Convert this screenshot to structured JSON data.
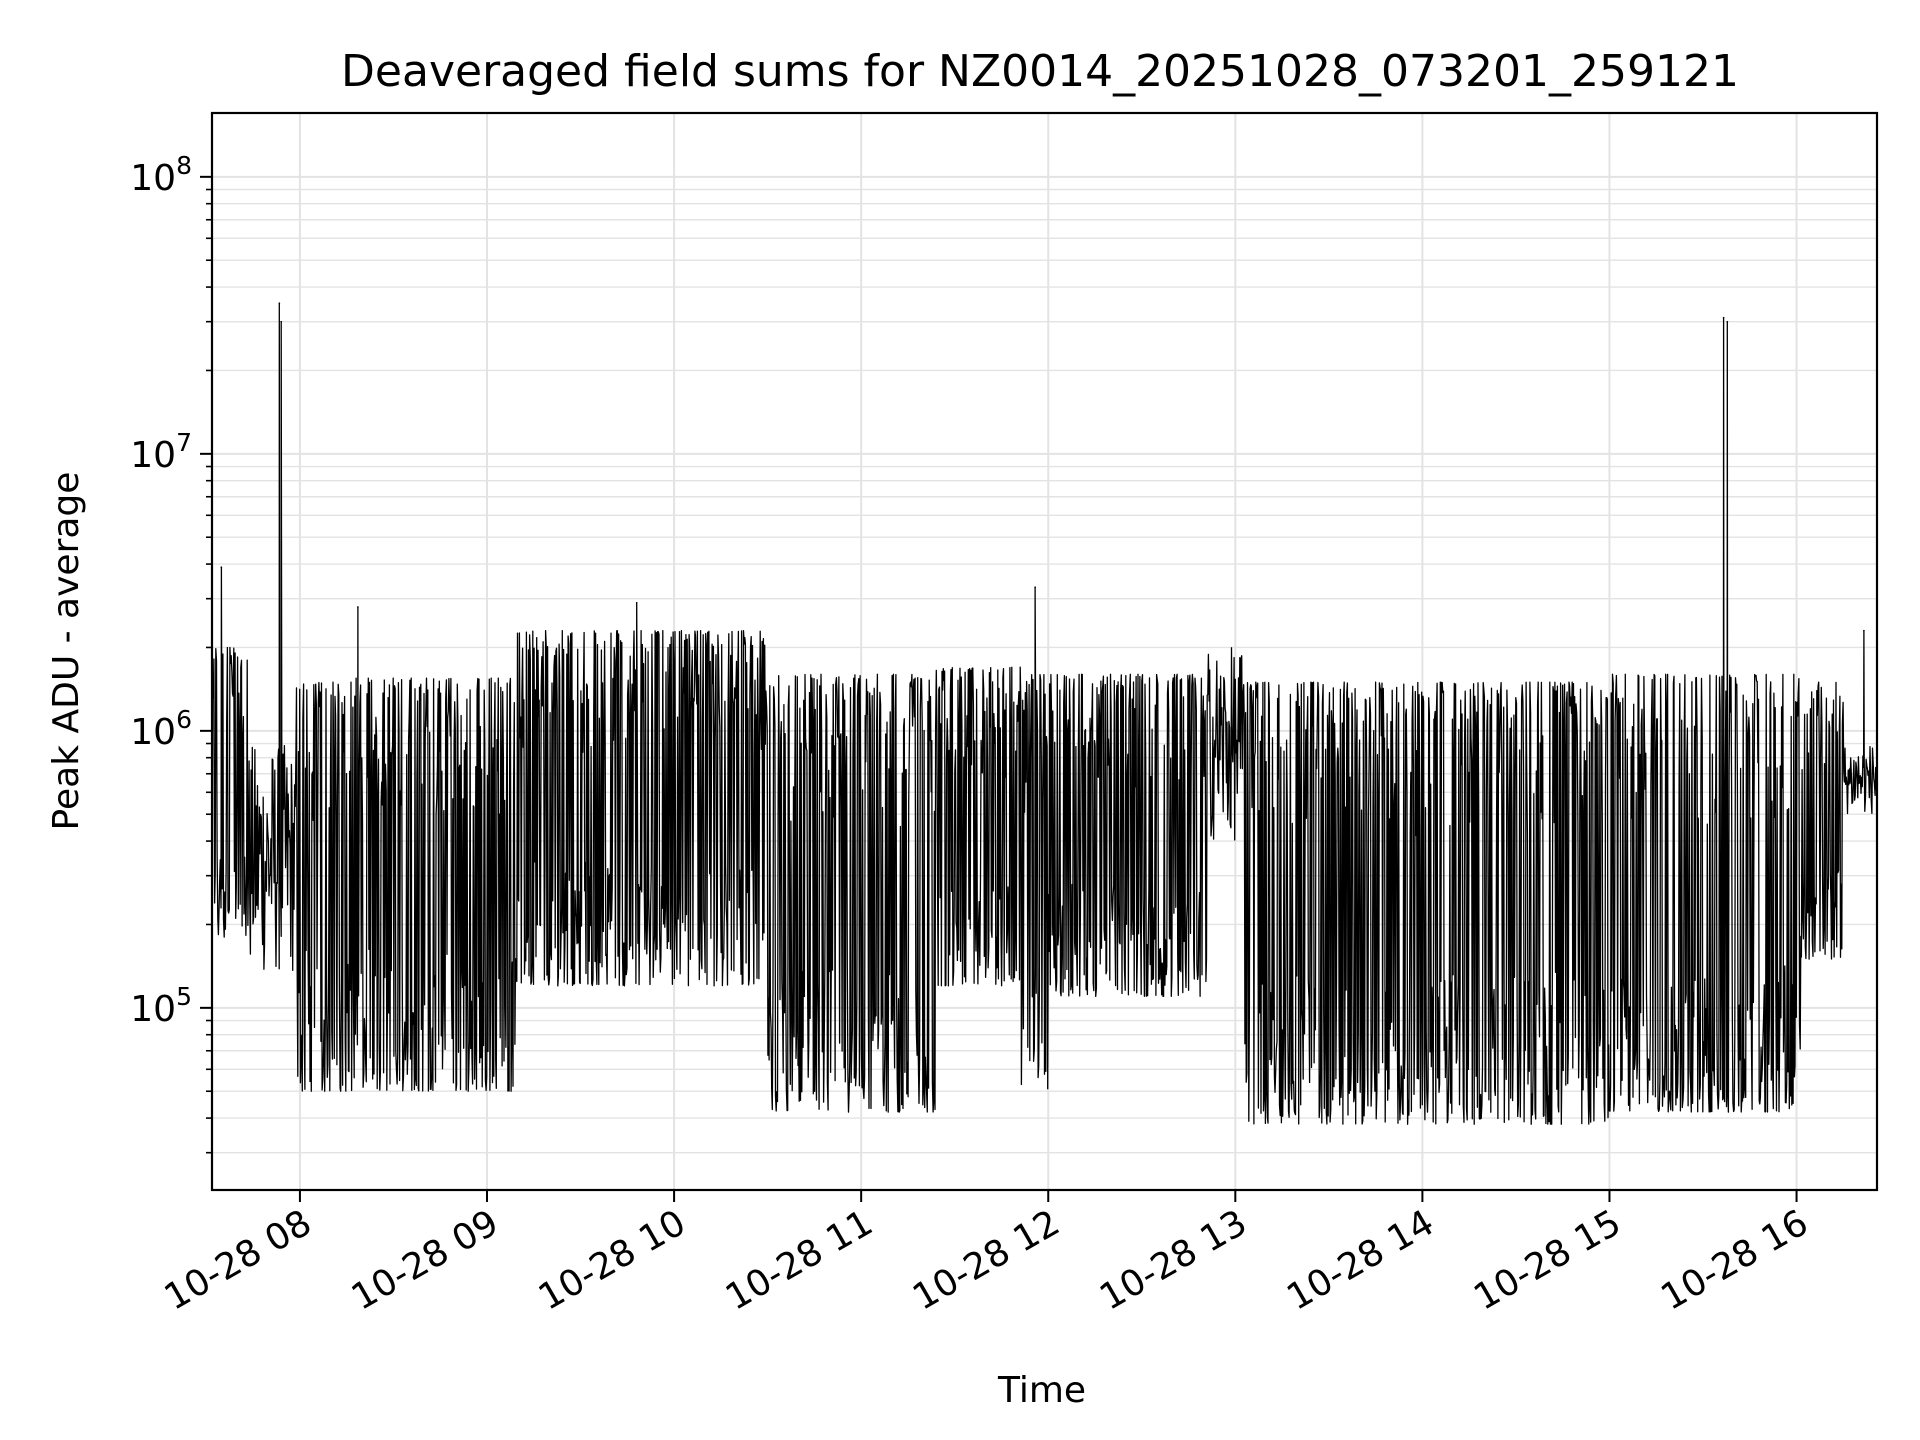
{
  "chart_data": {
    "type": "line",
    "title": "Deaveraged field sums for NZ0014_20251028_073201_259121",
    "xlabel": "Time",
    "ylabel": "Peak ADU - average",
    "yscale": "log",
    "ylim": [
      22000,
      170000000
    ],
    "xlim_hours": [
      7.53,
      16.43
    ],
    "grid": true,
    "line_color": "#000000",
    "grid_color": "#e3e3e3",
    "x_ticks": [
      {
        "hour": 8,
        "label": "10-28 08"
      },
      {
        "hour": 9,
        "label": "10-28 09"
      },
      {
        "hour": 10,
        "label": "10-28 10"
      },
      {
        "hour": 11,
        "label": "10-28 11"
      },
      {
        "hour": 12,
        "label": "10-28 12"
      },
      {
        "hour": 13,
        "label": "10-28 13"
      },
      {
        "hour": 14,
        "label": "10-28 14"
      },
      {
        "hour": 15,
        "label": "10-28 15"
      },
      {
        "hour": 16,
        "label": "10-28 16"
      }
    ],
    "y_ticks": [
      {
        "value": 100000,
        "base": "10",
        "exp": "5"
      },
      {
        "value": 1000000,
        "base": "10",
        "exp": "6"
      },
      {
        "value": 10000000,
        "base": "10",
        "exp": "7"
      },
      {
        "value": 100000000,
        "base": "10",
        "exp": "8"
      }
    ],
    "series": [
      {
        "name": "Peak ADU - average",
        "baseline_low": 55000,
        "baseline_high": 1500000,
        "spikes": [
          {
            "hour": 7.58,
            "value": 3900000
          },
          {
            "hour": 7.89,
            "value": 35000000
          },
          {
            "hour": 7.9,
            "value": 30000000
          },
          {
            "hour": 8.31,
            "value": 2800000
          },
          {
            "hour": 9.8,
            "value": 2900000
          },
          {
            "hour": 11.93,
            "value": 3300000
          },
          {
            "hour": 15.61,
            "value": 31000000
          },
          {
            "hour": 15.63,
            "value": 30000000
          },
          {
            "hour": 16.36,
            "value": 2300000
          }
        ],
        "segments": [
          {
            "start": 7.53,
            "end": 7.72,
            "low": 180000,
            "high": 2000000
          },
          {
            "start": 7.72,
            "end": 7.98,
            "low": 130000,
            "high": 900000
          },
          {
            "start": 7.98,
            "end": 8.3,
            "low": 50000,
            "high": 1500000
          },
          {
            "start": 8.3,
            "end": 9.15,
            "low": 50000,
            "high": 1550000
          },
          {
            "start": 9.15,
            "end": 10.5,
            "low": 120000,
            "high": 2300000
          },
          {
            "start": 10.5,
            "end": 11.4,
            "low": 42000,
            "high": 1600000
          },
          {
            "start": 11.4,
            "end": 11.85,
            "low": 120000,
            "high": 1700000
          },
          {
            "start": 11.85,
            "end": 12.0,
            "low": 50000,
            "high": 1600000
          },
          {
            "start": 12.0,
            "end": 12.85,
            "low": 110000,
            "high": 1600000
          },
          {
            "start": 12.85,
            "end": 13.05,
            "low": 400000,
            "high": 2000000
          },
          {
            "start": 13.05,
            "end": 15.0,
            "low": 38000,
            "high": 1500000
          },
          {
            "start": 15.0,
            "end": 16.02,
            "low": 42000,
            "high": 1600000
          },
          {
            "start": 16.02,
            "end": 16.25,
            "low": 150000,
            "high": 1500000
          },
          {
            "start": 16.25,
            "end": 16.43,
            "low": 500000,
            "high": 900000
          }
        ]
      }
    ]
  }
}
